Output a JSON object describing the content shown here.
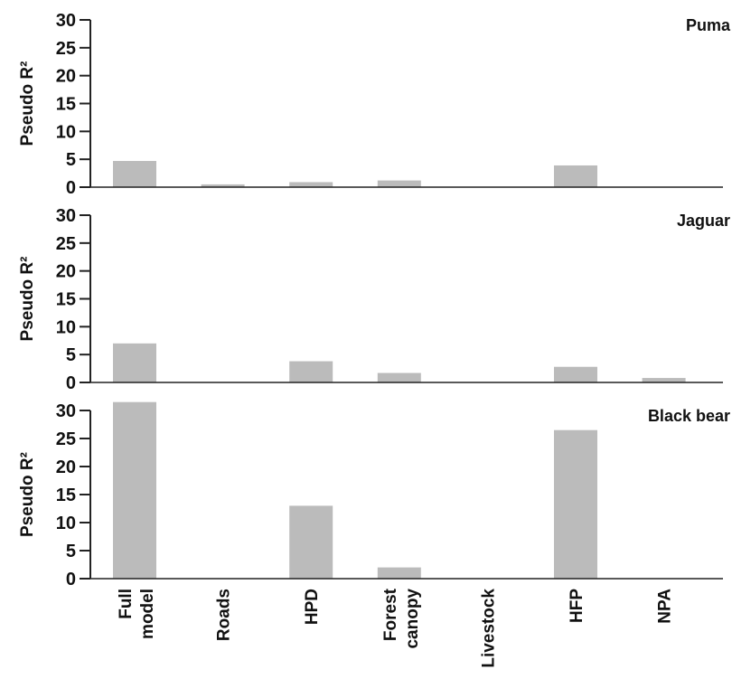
{
  "chart_data": {
    "type": "bar",
    "categories": [
      "Full model",
      "Roads",
      "HPD",
      "Forest canopy",
      "Livestock",
      "HFP",
      "NPA"
    ],
    "ylabel": "Pseudo R²",
    "colors": {
      "bar": "#bbbbbb",
      "axis": "#222222"
    },
    "panels": [
      {
        "title": "Puma",
        "ylim": [
          0,
          30
        ],
        "yticks": [
          0,
          5,
          10,
          15,
          20,
          25,
          30
        ],
        "values": [
          4.7,
          0.5,
          0.9,
          1.2,
          0,
          3.9,
          0
        ]
      },
      {
        "title": "Jaguar",
        "ylim": [
          0,
          30
        ],
        "yticks": [
          0,
          5,
          10,
          15,
          20,
          25,
          30
        ],
        "values": [
          7.0,
          0,
          3.8,
          1.7,
          0,
          2.8,
          0.8
        ]
      },
      {
        "title": "Black bear",
        "ylim": [
          0,
          30
        ],
        "yticks": [
          0,
          5,
          10,
          15,
          20,
          25,
          30
        ],
        "values": [
          31.5,
          0,
          13.0,
          2.0,
          0,
          26.5,
          0
        ]
      }
    ]
  }
}
